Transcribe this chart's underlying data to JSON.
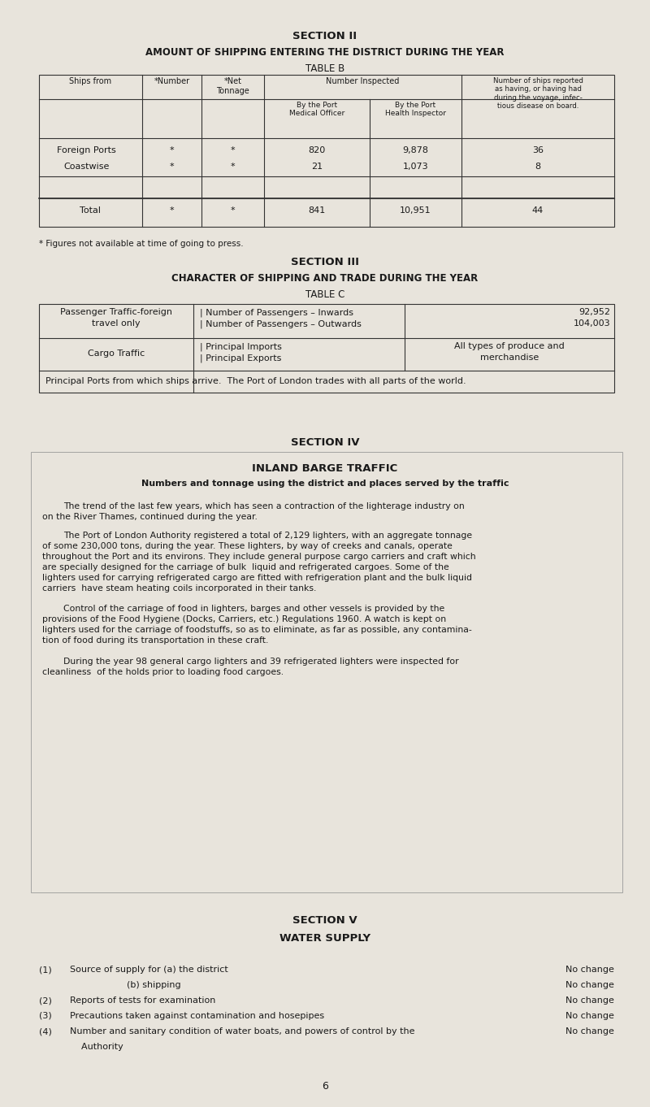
{
  "bg_color": "#e8e4dc",
  "text_color": "#222222",
  "page_width": 8.0,
  "page_height": 13.62,
  "section2_title": "SECTION II",
  "section2_subtitle": "AMOUNT OF SHIPPING ENTERING THE DISTRICT DURING THE YEAR",
  "section2_table_label": "TABLE B",
  "table_b_footnote": "* Figures not available at time of going to press.",
  "section3_title": "SECTION III",
  "section3_subtitle": "CHARACTER OF SHIPPING AND TRADE DURING THE YEAR",
  "section3_table_label": "TABLE C",
  "table_c_bottom": "Principal Ports from which ships arrive.  The Port of London trades with all parts of the world.",
  "section4_title": "SECTION IV",
  "section4_subtitle": "INLAND BARGE TRAFFIC",
  "section4_subheading": "Numbers and tonnage using the district and places served by the traffic",
  "section5_title": "SECTION V",
  "section5_subtitle": "WATER SUPPLY",
  "page_number": "6"
}
